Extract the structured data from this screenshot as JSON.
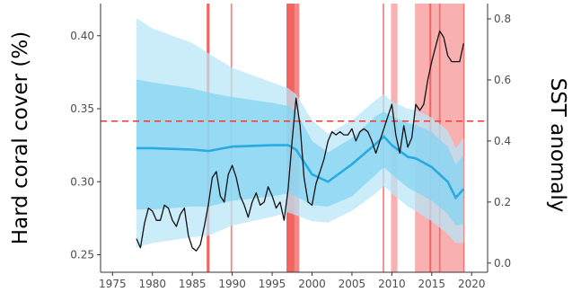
{
  "chart_data": {
    "type": "line",
    "title": "",
    "xlabel": "",
    "ylabel": "Hard coral cover (%)",
    "y2label": "SST anomaly",
    "xlim": [
      1973.5,
      2022
    ],
    "ylim": [
      0.238,
      0.422
    ],
    "y2lim": [
      -0.03,
      0.85
    ],
    "x_ticks": [
      1975,
      1980,
      1985,
      1990,
      1995,
      2000,
      2005,
      2010,
      2015,
      2020
    ],
    "y_ticks": [
      0.25,
      0.3,
      0.35,
      0.4
    ],
    "y_tick_labels": [
      "0.25",
      "0.30",
      "0.35",
      "0.40"
    ],
    "y2_ticks": [
      0.0,
      0.2,
      0.4,
      0.6,
      0.8
    ],
    "y2_tick_labels": [
      "0.0",
      "0.2",
      "0.4",
      "0.6",
      "0.8"
    ],
    "grid": false,
    "threshold_line": {
      "y2": 0.465,
      "color": "#e8473f",
      "style": "dashed"
    },
    "coral_cover": {
      "color": "#29abe2",
      "x": [
        1978,
        1980,
        1985,
        1987,
        1990,
        1995,
        1997,
        1998,
        2000,
        2002,
        2005,
        2008,
        2009,
        2010,
        2012,
        2013,
        2015,
        2017,
        2018,
        2019
      ],
      "mean": [
        0.323,
        0.323,
        0.322,
        0.321,
        0.324,
        0.325,
        0.325,
        0.322,
        0.305,
        0.3,
        0.312,
        0.326,
        0.331,
        0.325,
        0.317,
        0.316,
        0.31,
        0.3,
        0.289,
        0.295
      ],
      "ci50_low": [
        0.281,
        0.281,
        0.283,
        0.283,
        0.287,
        0.29,
        0.292,
        0.29,
        0.284,
        0.283,
        0.29,
        0.305,
        0.31,
        0.305,
        0.296,
        0.293,
        0.287,
        0.278,
        0.27,
        0.271
      ],
      "ci50_high": [
        0.37,
        0.368,
        0.364,
        0.361,
        0.358,
        0.354,
        0.352,
        0.348,
        0.328,
        0.32,
        0.33,
        0.345,
        0.348,
        0.345,
        0.34,
        0.339,
        0.334,
        0.324,
        0.312,
        0.318
      ],
      "ci95_low": [
        0.255,
        0.258,
        0.262,
        0.263,
        0.27,
        0.276,
        0.279,
        0.277,
        0.273,
        0.272,
        0.28,
        0.292,
        0.297,
        0.292,
        0.283,
        0.28,
        0.273,
        0.264,
        0.258,
        0.258
      ],
      "ci95_high": [
        0.412,
        0.405,
        0.395,
        0.388,
        0.378,
        0.368,
        0.364,
        0.36,
        0.342,
        0.333,
        0.342,
        0.356,
        0.36,
        0.355,
        0.35,
        0.349,
        0.344,
        0.335,
        0.323,
        0.33
      ],
      "band_colors": {
        "ci95": "#b9e6f7",
        "ci50": "#84d4f1"
      }
    },
    "sst_anomaly": {
      "color": "#111111",
      "x": [
        1978,
        1978.5,
        1979,
        1979.5,
        1980,
        1980.5,
        1981,
        1981.5,
        1982,
        1982.5,
        1983,
        1983.5,
        1984,
        1984.5,
        1985,
        1985.5,
        1986,
        1986.5,
        1987,
        1987.5,
        1988,
        1988.5,
        1989,
        1989.5,
        1990,
        1990.5,
        1991,
        1991.5,
        1992,
        1992.5,
        1993,
        1993.5,
        1994,
        1994.5,
        1995,
        1995.5,
        1996,
        1996.5,
        1997,
        1997.5,
        1998,
        1998.5,
        1999,
        1999.5,
        2000,
        2000.5,
        2001,
        2001.5,
        2002,
        2002.5,
        2003,
        2003.5,
        2004,
        2004.5,
        2005,
        2005.5,
        2006,
        2006.5,
        2007,
        2007.5,
        2008,
        2008.5,
        2009,
        2009.5,
        2010,
        2010.5,
        2011,
        2011.5,
        2012,
        2012.5,
        2013,
        2013.5,
        2014,
        2014.5,
        2015,
        2015.5,
        2016,
        2016.5,
        2017,
        2017.5,
        2018,
        2018.5,
        2019
      ],
      "y": [
        0.08,
        0.05,
        0.13,
        0.18,
        0.17,
        0.14,
        0.14,
        0.19,
        0.18,
        0.14,
        0.12,
        0.16,
        0.18,
        0.09,
        0.05,
        0.04,
        0.06,
        0.12,
        0.19,
        0.28,
        0.3,
        0.22,
        0.2,
        0.29,
        0.32,
        0.28,
        0.22,
        0.19,
        0.15,
        0.2,
        0.23,
        0.19,
        0.2,
        0.25,
        0.22,
        0.18,
        0.2,
        0.14,
        0.24,
        0.4,
        0.54,
        0.45,
        0.28,
        0.2,
        0.19,
        0.26,
        0.3,
        0.34,
        0.4,
        0.43,
        0.42,
        0.43,
        0.42,
        0.42,
        0.44,
        0.4,
        0.43,
        0.44,
        0.43,
        0.4,
        0.36,
        0.4,
        0.44,
        0.48,
        0.52,
        0.42,
        0.36,
        0.45,
        0.38,
        0.41,
        0.52,
        0.5,
        0.52,
        0.6,
        0.66,
        0.71,
        0.76,
        0.74,
        0.68,
        0.66,
        0.66,
        0.66,
        0.72
      ]
    },
    "bleaching_events": {
      "color": "#ef5350",
      "spans": [
        {
          "start": 1986.8,
          "end": 1987.15,
          "strength": "strong"
        },
        {
          "start": 1989.8,
          "end": 1990.0,
          "strength": "medium"
        },
        {
          "start": 1996.8,
          "end": 1997.8,
          "strength": "strong"
        },
        {
          "start": 1997.8,
          "end": 1998.4,
          "strength": "medium"
        },
        {
          "start": 2008.85,
          "end": 2009.05,
          "strength": "medium"
        },
        {
          "start": 2009.9,
          "end": 2010.7,
          "strength": "light"
        },
        {
          "start": 2012.9,
          "end": 2014.7,
          "strength": "light"
        },
        {
          "start": 2014.7,
          "end": 2014.95,
          "strength": "strong"
        },
        {
          "start": 2014.95,
          "end": 2019.1,
          "strength": "light"
        },
        {
          "start": 2015.9,
          "end": 2016.1,
          "strength": "medium"
        },
        {
          "start": 2018.95,
          "end": 2019.1,
          "strength": "medium"
        }
      ]
    }
  }
}
